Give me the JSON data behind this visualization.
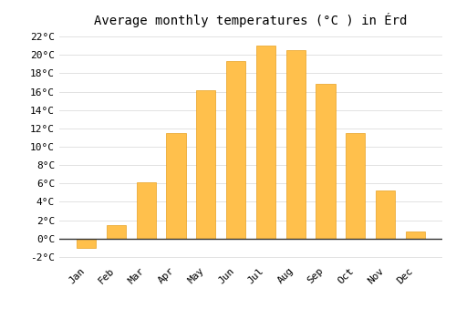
{
  "title": "Average monthly temperatures (°C ) in Érd",
  "months": [
    "Jan",
    "Feb",
    "Mar",
    "Apr",
    "May",
    "Jun",
    "Jul",
    "Aug",
    "Sep",
    "Oct",
    "Nov",
    "Dec"
  ],
  "values": [
    -1.0,
    1.5,
    6.1,
    11.5,
    16.2,
    19.3,
    21.0,
    20.5,
    16.8,
    11.5,
    5.2,
    0.8
  ],
  "bar_color": "#FFC04C",
  "bar_edge_color": "#E8A020",
  "ylim": [
    -2.5,
    22.5
  ],
  "yticks": [
    -2,
    0,
    2,
    4,
    6,
    8,
    10,
    12,
    14,
    16,
    18,
    20,
    22
  ],
  "background_color": "#FFFFFF",
  "grid_color": "#DDDDDD",
  "font_family": "monospace",
  "title_fontsize": 10,
  "tick_fontsize": 8,
  "zero_line_color": "#333333"
}
